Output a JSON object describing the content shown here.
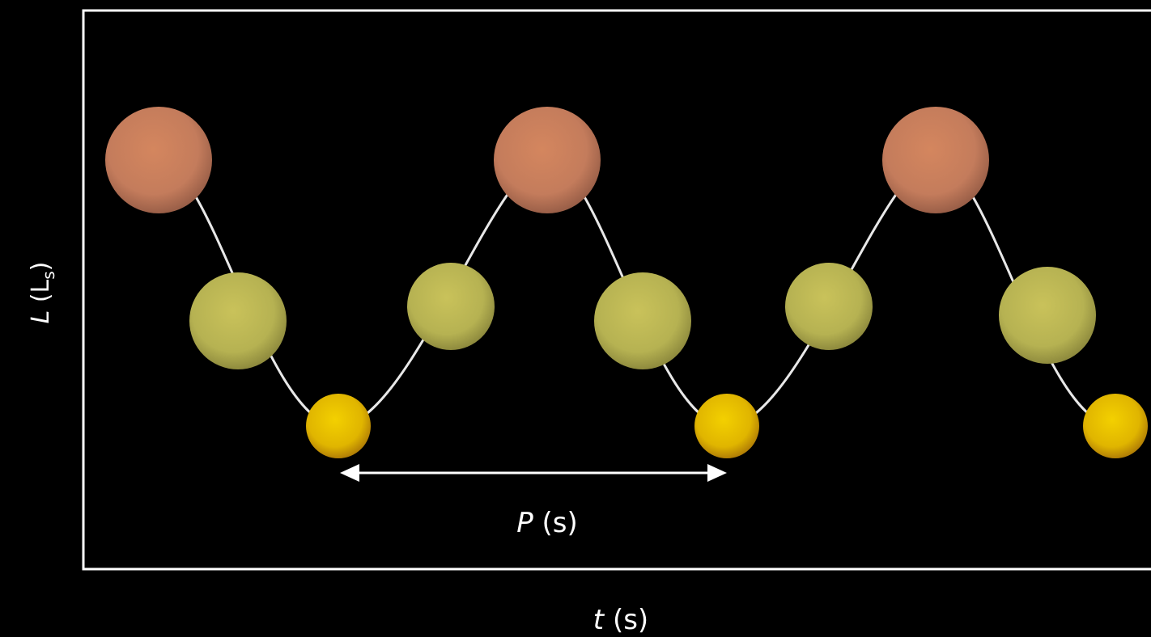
{
  "y_label": [
    "L",
    " (L",
    "s",
    ")"
  ],
  "x_label": [
    "t",
    " (s)"
  ],
  "period_label": [
    "P",
    " (s)"
  ]
}
